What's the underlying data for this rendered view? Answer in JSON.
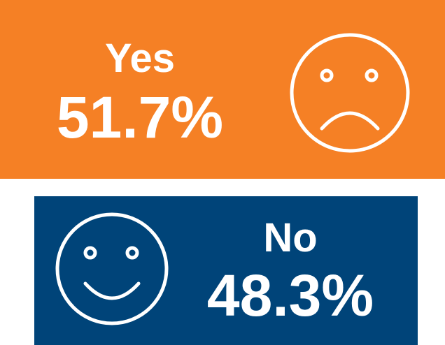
{
  "panels": [
    {
      "label": "Yes",
      "value": "51.7%"
    },
    {
      "label": "No",
      "value": "48.3%"
    }
  ]
}
